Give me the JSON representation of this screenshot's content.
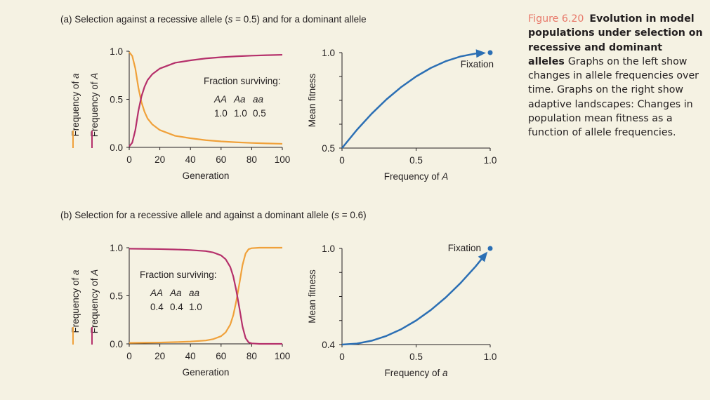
{
  "panel_a_title": [
    "(a) Selection against a recessive allele (",
    "s",
    " = 0.5) and for a dominant allele"
  ],
  "panel_b_title": [
    "(b) Selection for a recessive allele and against a dominant allele (",
    "s",
    " = 0.6)"
  ],
  "caption": {
    "figure_number": "Figure 6.20",
    "title": "Evolution in model populations under selection on recessive and dominant alleles",
    "body": "Graphs on the left show changes in allele frequencies over time. Graphs on the right show adaptive landscapes: Changes in population mean fitness as a function of allele frequencies."
  },
  "colors": {
    "freq_a": "#f0a13a",
    "freq_A": "#b5306b",
    "fitness": "#2b6fb4",
    "axis": "#231f20",
    "background": "#f5f2e3",
    "caption_accent": "#e8796a"
  },
  "chart_data": [
    {
      "id": "a-left",
      "type": "line",
      "xlabel": "Generation",
      "ylabel_parts": [
        {
          "text": "Frequency of ",
          "italic": "a"
        },
        {
          "text": "Frequency of ",
          "italic": "A"
        }
      ],
      "xlim": [
        0,
        100
      ],
      "ylim": [
        0,
        1
      ],
      "xticks": [
        0,
        20,
        40,
        60,
        80,
        100
      ],
      "xtick_labels": [
        "0",
        "20",
        "40",
        "60",
        "80",
        "100"
      ],
      "ytick_labels": [
        {
          "value": 0,
          "label": "0.0"
        },
        {
          "value": 0.5,
          "label": "0.5"
        },
        {
          "value": 1,
          "label": "1.0"
        }
      ],
      "inset": {
        "title": "Fraction surviving:",
        "genotypes": [
          "AA",
          "Aa",
          "aa"
        ],
        "values": [
          "1.0",
          "1.0",
          "0.5"
        ]
      },
      "series": [
        {
          "color_key": "freq_a",
          "x": [
            0,
            2,
            4,
            6,
            8,
            10,
            12,
            15,
            20,
            25,
            30,
            40,
            50,
            60,
            70,
            80,
            90,
            100
          ],
          "y": [
            0.99,
            0.95,
            0.82,
            0.62,
            0.47,
            0.37,
            0.3,
            0.24,
            0.18,
            0.15,
            0.12,
            0.095,
            0.075,
            0.062,
            0.053,
            0.046,
            0.041,
            0.037
          ]
        },
        {
          "color_key": "freq_A",
          "x": [
            0,
            2,
            4,
            6,
            8,
            10,
            12,
            15,
            20,
            25,
            30,
            40,
            50,
            60,
            70,
            80,
            90,
            100
          ],
          "y": [
            0.01,
            0.05,
            0.18,
            0.38,
            0.53,
            0.63,
            0.7,
            0.76,
            0.82,
            0.85,
            0.88,
            0.905,
            0.925,
            0.938,
            0.947,
            0.954,
            0.959,
            0.963
          ]
        }
      ]
    },
    {
      "id": "a-right",
      "type": "line",
      "xlabel_parts": {
        "text": "Frequency of ",
        "italic": "A"
      },
      "ylabel": "Mean fitness",
      "xlim": [
        0,
        1
      ],
      "ylim": [
        0.5,
        1
      ],
      "xtick_labels": [
        {
          "value": 0,
          "label": "0"
        },
        {
          "value": 0.5,
          "label": "0.5"
        },
        {
          "value": 1,
          "label": "1.0"
        }
      ],
      "ytick_labels": [
        {
          "value": 0.5,
          "label": "0.5"
        },
        {
          "value": 1,
          "label": "1.0"
        }
      ],
      "annotation": "Fixation",
      "series": [
        {
          "color_key": "fitness",
          "x": [
            0,
            0.1,
            0.2,
            0.3,
            0.4,
            0.5,
            0.6,
            0.7,
            0.8,
            0.9,
            1.0
          ],
          "y": [
            0.5,
            0.595,
            0.68,
            0.755,
            0.82,
            0.875,
            0.92,
            0.955,
            0.98,
            0.995,
            1.0
          ]
        }
      ]
    },
    {
      "id": "b-left",
      "type": "line",
      "xlabel": "Generation",
      "ylabel_parts": [
        {
          "text": "Frequency of ",
          "italic": "a"
        },
        {
          "text": "Frequency of ",
          "italic": "A"
        }
      ],
      "xlim": [
        0,
        100
      ],
      "ylim": [
        0,
        1
      ],
      "xticks": [
        0,
        20,
        40,
        60,
        80,
        100
      ],
      "xtick_labels": [
        "0",
        "20",
        "40",
        "60",
        "80",
        "100"
      ],
      "ytick_labels": [
        {
          "value": 0,
          "label": "0.0"
        },
        {
          "value": 0.5,
          "label": "0.5"
        },
        {
          "value": 1,
          "label": "1.0"
        }
      ],
      "inset": {
        "title": "Fraction surviving:",
        "genotypes": [
          "AA",
          "Aa",
          "aa"
        ],
        "values": [
          "0.4",
          "0.4",
          "1.0"
        ]
      },
      "series": [
        {
          "color_key": "freq_a",
          "x": [
            0,
            10,
            20,
            30,
            40,
            50,
            55,
            60,
            63,
            66,
            68,
            70,
            72,
            74,
            76,
            78,
            80,
            85,
            90,
            100
          ],
          "y": [
            0.01,
            0.012,
            0.014,
            0.018,
            0.024,
            0.035,
            0.05,
            0.08,
            0.12,
            0.2,
            0.3,
            0.45,
            0.63,
            0.82,
            0.94,
            0.985,
            0.995,
            1.0,
            1.0,
            1.0
          ]
        },
        {
          "color_key": "freq_A",
          "x": [
            0,
            10,
            20,
            30,
            40,
            50,
            55,
            60,
            63,
            66,
            68,
            70,
            72,
            74,
            76,
            78,
            80,
            85,
            90,
            100
          ],
          "y": [
            0.99,
            0.988,
            0.986,
            0.982,
            0.976,
            0.965,
            0.95,
            0.92,
            0.88,
            0.8,
            0.7,
            0.55,
            0.37,
            0.18,
            0.06,
            0.015,
            0.005,
            0.0,
            0.0,
            0.0
          ]
        }
      ]
    },
    {
      "id": "b-right",
      "type": "line",
      "xlabel_parts": {
        "text": "Frequency of ",
        "italic": "a"
      },
      "ylabel": "Mean fitness",
      "xlim": [
        0,
        1
      ],
      "ylim": [
        0.4,
        1
      ],
      "xtick_labels": [
        {
          "value": 0,
          "label": "0"
        },
        {
          "value": 0.5,
          "label": "0.5"
        },
        {
          "value": 1,
          "label": "1.0"
        }
      ],
      "ytick_labels": [
        {
          "value": 0.4,
          "label": "0.4"
        },
        {
          "value": 1,
          "label": "1.0"
        }
      ],
      "annotation": "Fixation",
      "series": [
        {
          "color_key": "fitness",
          "x": [
            0,
            0.1,
            0.2,
            0.3,
            0.4,
            0.5,
            0.6,
            0.7,
            0.8,
            0.9,
            1.0
          ],
          "y": [
            0.4,
            0.406,
            0.424,
            0.454,
            0.496,
            0.55,
            0.616,
            0.694,
            0.784,
            0.886,
            1.0
          ]
        }
      ]
    }
  ]
}
